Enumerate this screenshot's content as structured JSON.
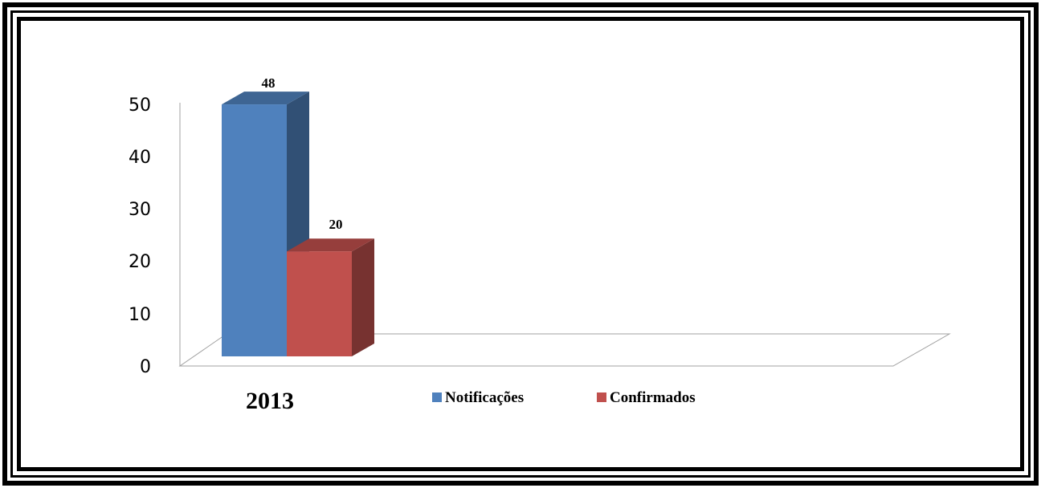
{
  "chart_data": {
    "type": "bar",
    "categories": [
      "2013"
    ],
    "series": [
      {
        "name": "Notificações",
        "values": [
          48
        ],
        "color": "#4F81BD"
      },
      {
        "name": "Confirmados",
        "values": [
          20
        ],
        "color": "#C0504D"
      }
    ],
    "ylim": [
      0,
      50
    ],
    "yticks": [
      "0",
      "10",
      "20",
      "30",
      "40",
      "50"
    ],
    "data_labels": [
      "48",
      "20"
    ],
    "legend_position": "bottom",
    "grid": false,
    "style": "3d-column"
  }
}
